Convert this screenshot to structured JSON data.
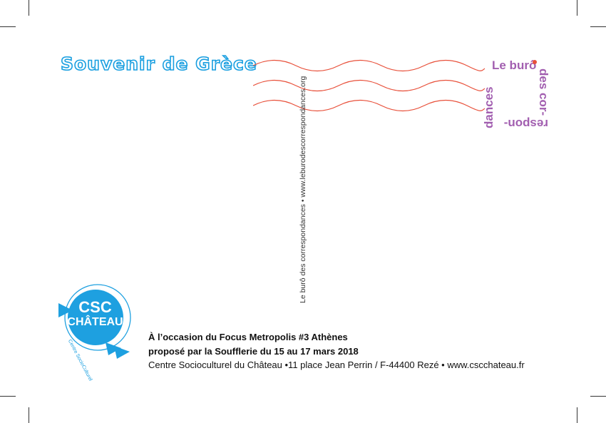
{
  "card": {
    "title": "Souvenir de Grèce",
    "vertical_text": "Le burô des correspondances • www.leburodescorrespondances.org",
    "stamp": {
      "top": "Le burô",
      "right": "des cor-",
      "bottom": "respon-",
      "left": "dances"
    },
    "logo": {
      "line1": "CSC",
      "line2": "CHÂTEAU",
      "arc_text": "Centre SocioCulturel"
    },
    "info": {
      "line1": "À l’occasion du Focus Metropolis #3 Athènes",
      "line2": "proposé par la Soufflerie du 15 au 17 mars 2018",
      "line3": "Centre Socioculturel du Château •11 place Jean Perrin / F-44400 Rezé • www.cscchateau.fr"
    }
  },
  "colors": {
    "title_outline": "#1a9fe0",
    "wave": "#e8503a",
    "stamp": "#a25fb0",
    "logo": "#1ea0e0"
  }
}
